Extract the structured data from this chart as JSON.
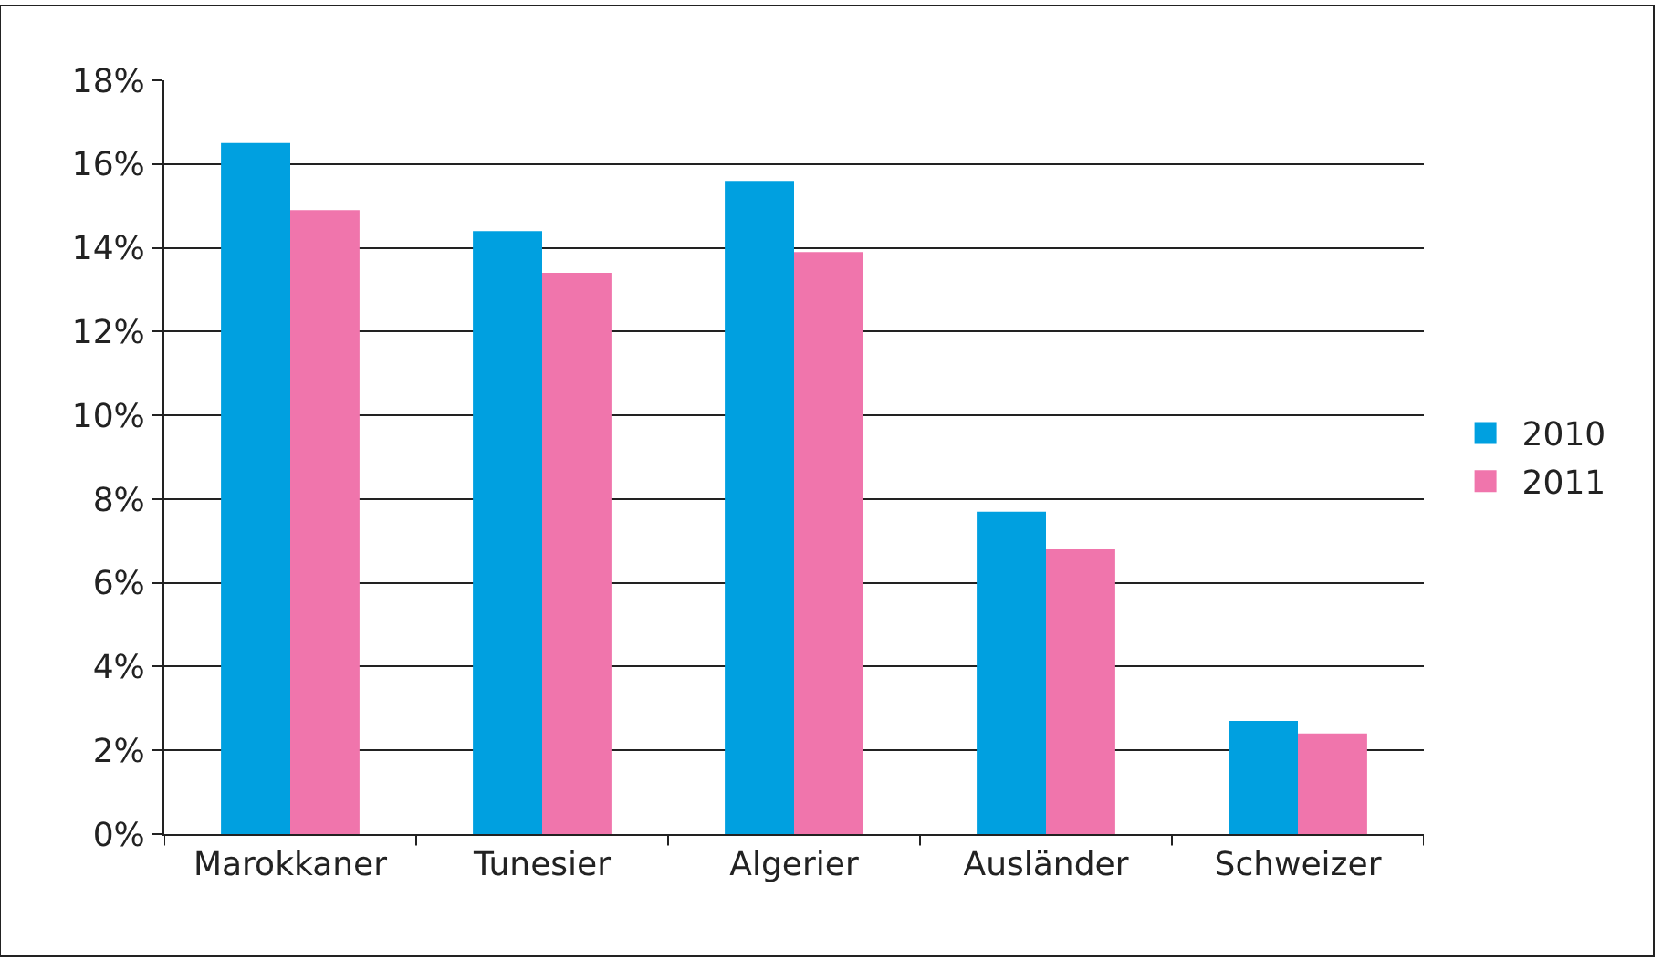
{
  "chart_data": {
    "type": "bar",
    "categories": [
      "Marokkaner",
      "Tunesier",
      "Algerier",
      "Ausländer",
      "Schweizer"
    ],
    "series": [
      {
        "name": "2010",
        "color": "#00a0e0",
        "values": [
          16.5,
          14.4,
          15.6,
          7.7,
          2.7
        ]
      },
      {
        "name": "2011",
        "color": "#f075ac",
        "values": [
          14.9,
          13.4,
          13.9,
          6.8,
          2.4
        ]
      }
    ],
    "ylim": [
      0,
      18
    ],
    "yticks": [
      {
        "value": 0,
        "label": "0%"
      },
      {
        "value": 2,
        "label": "2%"
      },
      {
        "value": 4,
        "label": "4%"
      },
      {
        "value": 6,
        "label": "6%"
      },
      {
        "value": 8,
        "label": "8%"
      },
      {
        "value": 10,
        "label": "10%"
      },
      {
        "value": 12,
        "label": "12%"
      },
      {
        "value": 14,
        "label": "14%"
      },
      {
        "value": 16,
        "label": "16%"
      },
      {
        "value": 18,
        "label": "18%"
      }
    ],
    "grid": "y",
    "legend": "right"
  }
}
